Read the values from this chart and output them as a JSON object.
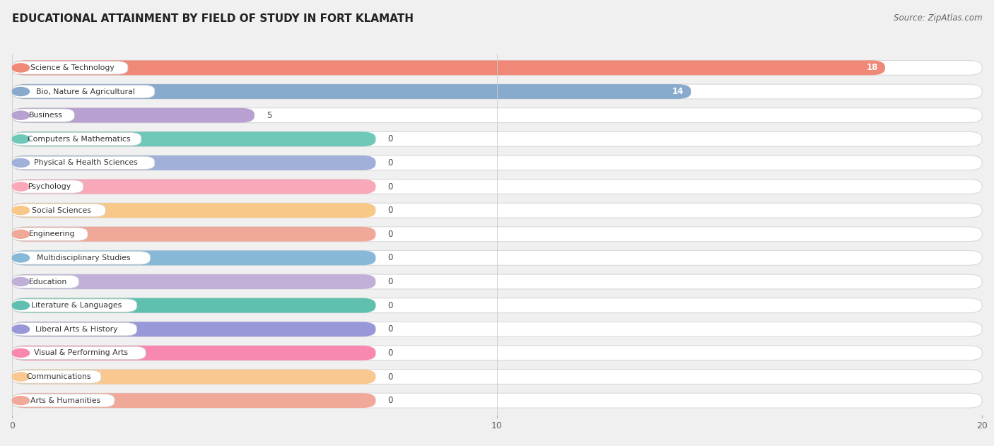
{
  "title": "EDUCATIONAL ATTAINMENT BY FIELD OF STUDY IN FORT KLAMATH",
  "source": "Source: ZipAtlas.com",
  "categories": [
    "Science & Technology",
    "Bio, Nature & Agricultural",
    "Business",
    "Computers & Mathematics",
    "Physical & Health Sciences",
    "Psychology",
    "Social Sciences",
    "Engineering",
    "Multidisciplinary Studies",
    "Education",
    "Literature & Languages",
    "Liberal Arts & History",
    "Visual & Performing Arts",
    "Communications",
    "Arts & Humanities"
  ],
  "values": [
    18,
    14,
    5,
    0,
    0,
    0,
    0,
    0,
    0,
    0,
    0,
    0,
    0,
    0,
    0
  ],
  "bar_colors": [
    "#f08878",
    "#88AACC",
    "#b8a0d0",
    "#70c8b8",
    "#a0b0d8",
    "#f8a8b8",
    "#f8c888",
    "#f0a898",
    "#88b8d8",
    "#c0b0d8",
    "#60c0b0",
    "#9898d8",
    "#f888b0",
    "#f8c890",
    "#f0a898"
  ],
  "zero_bar_width": 7.5,
  "xlim": [
    0,
    20
  ],
  "xticks": [
    0,
    10,
    20
  ],
  "background_color": "#f0f0f0",
  "row_bg_color": "#ffffff",
  "title_fontsize": 11,
  "source_fontsize": 8.5,
  "bar_height": 0.62
}
